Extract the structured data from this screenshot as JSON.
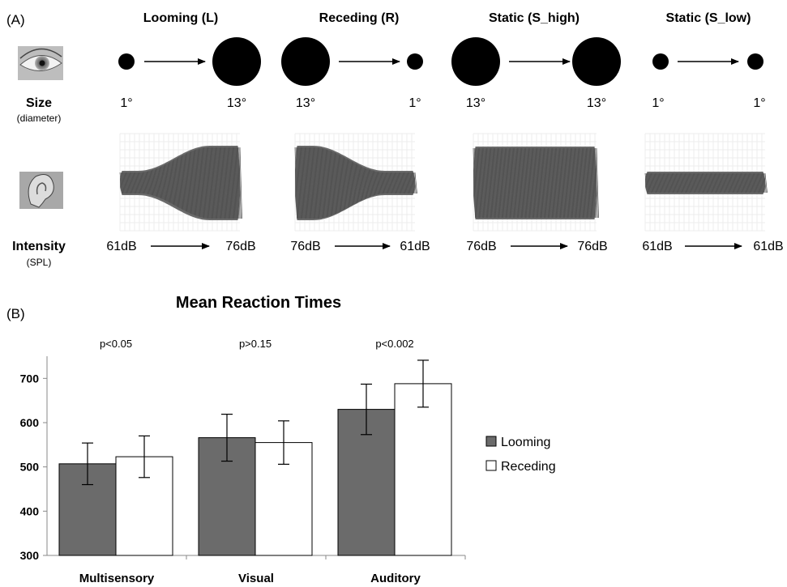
{
  "panel_a": {
    "label": "(A)",
    "size_label": "Size",
    "size_sublabel": "(diameter)",
    "intensity_label": "Intensity",
    "intensity_sublabel": "(SPL)",
    "conditions": [
      {
        "title": "Looming (L)",
        "size_start": "1°",
        "size_end": "13°",
        "int_start": "61dB",
        "int_end": "76dB",
        "wave": "looming"
      },
      {
        "title": "Receding (R)",
        "size_start": "13°",
        "size_end": "1°",
        "int_start": "76dB",
        "int_end": "61dB",
        "wave": "receding"
      },
      {
        "title": "Static (S_high)",
        "size_start": "13°",
        "size_end": "13°",
        "int_start": "76dB",
        "int_end": "76dB",
        "wave": "static_high"
      },
      {
        "title": "Static (S_low)",
        "size_start": "1°",
        "size_end": "1°",
        "int_start": "61dB",
        "int_end": "61dB",
        "wave": "static_low"
      }
    ]
  },
  "panel_b": {
    "label": "(B)"
  },
  "chart_data": {
    "type": "bar",
    "title": "Mean Reaction Times",
    "categories": [
      "Multisensory",
      "Visual",
      "Auditory"
    ],
    "series": [
      {
        "name": "Looming",
        "values": [
          507,
          566,
          630
        ],
        "errors": [
          47,
          53,
          57
        ],
        "color": "#6b6b6b"
      },
      {
        "name": "Receding",
        "values": [
          523,
          555,
          688
        ],
        "errors": [
          47,
          49,
          53
        ],
        "color": "#ffffff"
      }
    ],
    "annotations": [
      "p<0.05",
      "p>0.15",
      "p<0.002"
    ],
    "ylim": [
      300,
      750
    ],
    "yticks": [
      300,
      400,
      500,
      600,
      700
    ],
    "xlabel": "",
    "ylabel": "",
    "legend_position": "right",
    "grid": false
  }
}
